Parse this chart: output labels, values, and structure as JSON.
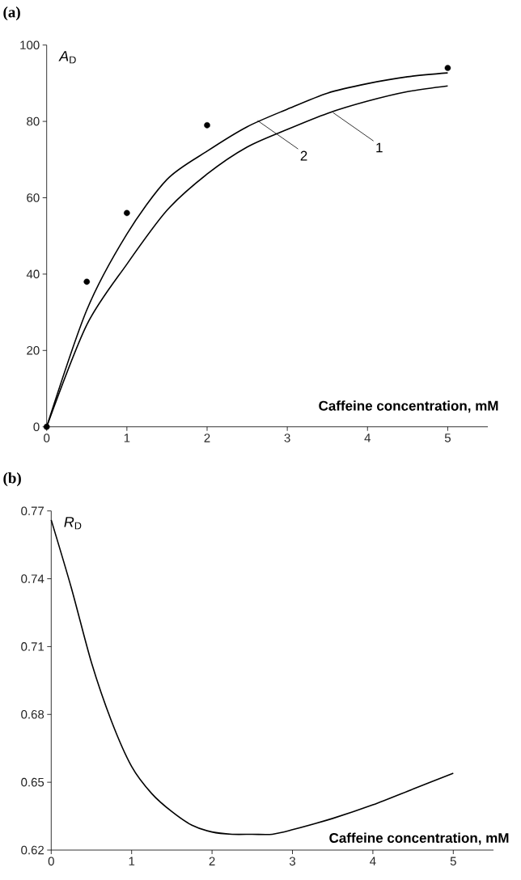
{
  "chart_data": [
    {
      "type": "line",
      "title": "(a)",
      "ylabel": "*A*$_{D}$",
      "xlabel": "Caffeine concentration, mM",
      "xlim": [
        0,
        5.5
      ],
      "ylim": [
        0,
        100
      ],
      "xticks": [
        0,
        1,
        2,
        3,
        4,
        5
      ],
      "yticks": [
        0,
        20,
        40,
        60,
        80,
        100
      ],
      "series": [
        {
          "color": "#000000",
          "marker": "none",
          "x": [
            0,
            0.5,
            1,
            1.5,
            2,
            2.5,
            3,
            3.5,
            4,
            4.5,
            5
          ],
          "values": [
            0,
            26.7,
            42.6,
            56.7,
            66.2,
            73.3,
            77.9,
            82.1,
            85.3,
            87.8,
            89.3
          ]
        },
        {
          "color": "#000000",
          "marker": "none",
          "x": [
            0,
            0.5,
            1,
            1.5,
            2,
            2.5,
            3,
            3.5,
            4,
            4.5,
            5
          ],
          "values": [
            0,
            30.6,
            50.5,
            64.8,
            72.2,
            78.6,
            83.2,
            87.4,
            89.9,
            91.7,
            92.7
          ]
        },
        {
          "type": "scatter",
          "color": "#000000",
          "marker": "circle",
          "x": [
            0,
            0.5,
            1,
            2,
            5
          ],
          "values": [
            0,
            38,
            56,
            79,
            94
          ]
        }
      ],
      "annotations": [
        {
          "text": "2",
          "x": 2.63,
          "y": 80.2
        },
        {
          "text": "1",
          "x": 3.57,
          "y": 82.3
        }
      ]
    },
    {
      "type": "line",
      "title": "(b)",
      "ylabel": "*R*$_{D}$",
      "xlabel": "Caffeine concentration, mM",
      "xlim": [
        0,
        5.5
      ],
      "ylim": [
        0.62,
        0.77
      ],
      "xticks": [
        0,
        1,
        2,
        3,
        4,
        5
      ],
      "yticks": [
        0.62,
        0.65,
        0.68,
        0.71,
        0.74,
        0.77
      ],
      "series": [
        {
          "color": "#000000",
          "marker": "none",
          "x": [
            0,
            0.25,
            0.5,
            0.75,
            1,
            1.25,
            1.5,
            1.75,
            2,
            2.25,
            2.5,
            2.75,
            3,
            3.5,
            4,
            4.5,
            5
          ],
          "values": [
            0.766,
            0.736,
            0.703,
            0.677,
            0.657,
            0.645,
            0.637,
            0.631,
            0.628,
            0.627,
            0.627,
            0.627,
            0.629,
            0.634,
            0.64,
            0.647,
            0.654
          ]
        }
      ]
    }
  ]
}
